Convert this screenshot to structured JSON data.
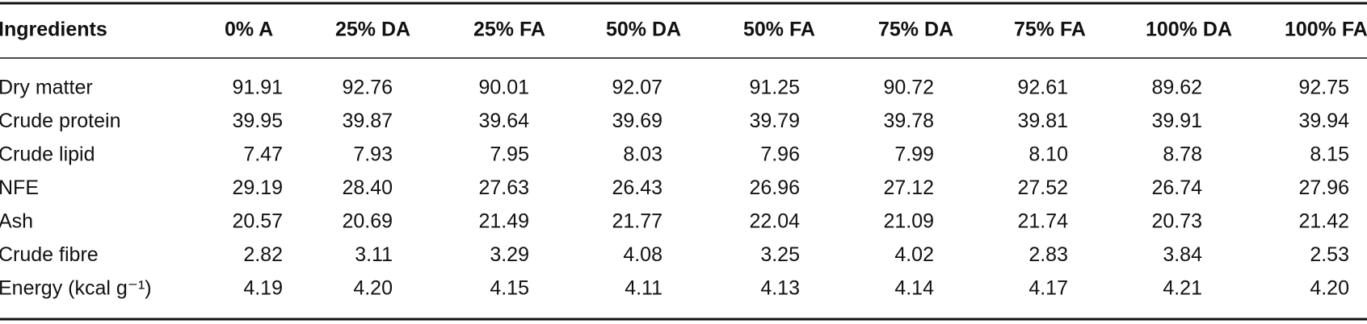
{
  "table": {
    "header": [
      "Ingredients",
      "0% A",
      "25% DA",
      "25% FA",
      "50% DA",
      "50% FA",
      "75% DA",
      "75% FA",
      "100% DA",
      "100% FA"
    ],
    "rows": [
      [
        "Dry matter",
        "91.91",
        "92.76",
        "90.01",
        "92.07",
        "91.25",
        "90.72",
        "92.61",
        "89.62",
        "92.75"
      ],
      [
        "Crude protein",
        "39.95",
        "39.87",
        "39.64",
        "39.69",
        "39.79",
        "39.78",
        "39.81",
        "39.91",
        "39.94"
      ],
      [
        "Crude lipid",
        "7.47",
        "7.93",
        "7.95",
        "8.03",
        "7.96",
        "7.99",
        "8.10",
        "8.78",
        "8.15"
      ],
      [
        "NFE",
        "29.19",
        "28.40",
        "27.63",
        "26.43",
        "26.96",
        "27.12",
        "27.52",
        "26.74",
        "27.96"
      ],
      [
        "Ash",
        "20.57",
        "20.69",
        "21.49",
        "21.77",
        "22.04",
        "21.09",
        "21.74",
        "20.73",
        "21.42"
      ],
      [
        "Crude fibre",
        "2.82",
        "3.11",
        "3.29",
        "4.08",
        "3.25",
        "4.02",
        "2.83",
        "3.84",
        "2.53"
      ],
      [
        "Energy (kcal g⁻¹)",
        "4.19",
        "4.20",
        "4.15",
        "4.11",
        "4.13",
        "4.14",
        "4.17",
        "4.21",
        "4.20"
      ]
    ]
  }
}
